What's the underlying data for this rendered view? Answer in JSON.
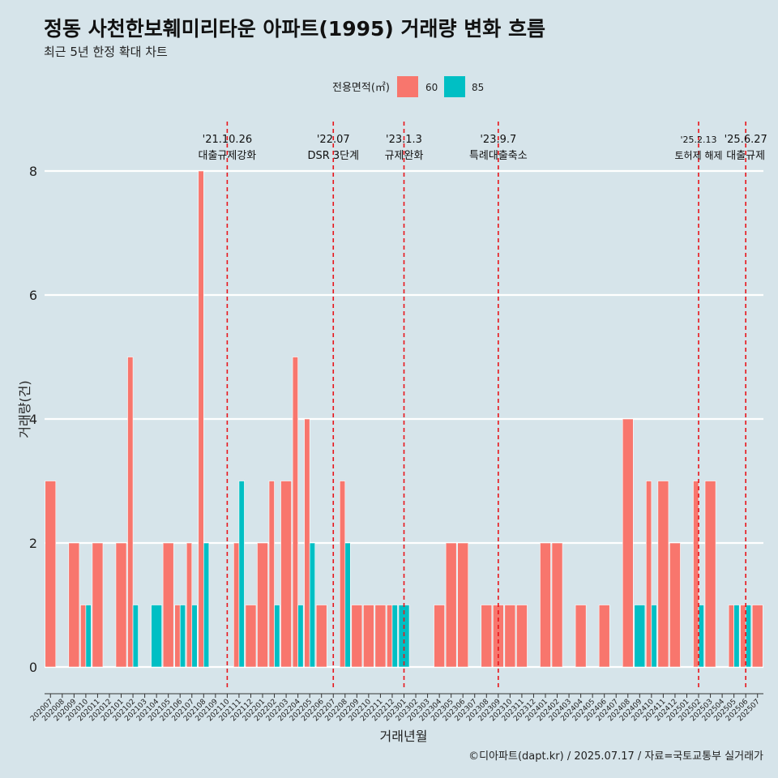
{
  "chart_data": {
    "type": "bar",
    "title": "정동 사천한보훼미리타운 아파트(1995) 거래량 변화 흐름",
    "subtitle": "최근 5년 한정 확대 차트",
    "xlabel": "거래년월",
    "ylabel": "거래량(건)",
    "caption": "©디아파트(dapt.kr) / 2025.07.17 / 자료=국토교통부 실거래가",
    "legend": {
      "title": "전용면적(㎡)",
      "position": "top"
    },
    "ylim": [
      0,
      8.6
    ],
    "yticks": [
      0,
      2,
      4,
      6,
      8
    ],
    "grid": true,
    "categories": [
      "202007",
      "202008",
      "202009",
      "202010",
      "202011",
      "202012",
      "202101",
      "202102",
      "202103",
      "202104",
      "202105",
      "202106",
      "202107",
      "202108",
      "202109",
      "202110",
      "202111",
      "202112",
      "202201",
      "202202",
      "202203",
      "202204",
      "202205",
      "202206",
      "202207",
      "202208",
      "202209",
      "202210",
      "202211",
      "202212",
      "202301",
      "202302",
      "202303",
      "202304",
      "202305",
      "202306",
      "202307",
      "202308",
      "202309",
      "202310",
      "202311",
      "202312",
      "202401",
      "202402",
      "202403",
      "202404",
      "202405",
      "202406",
      "202407",
      "202408",
      "202409",
      "202410",
      "202411",
      "202412",
      "202501",
      "202502",
      "202503",
      "202504",
      "202505",
      "202506",
      "202507"
    ],
    "series": [
      {
        "name": "60",
        "color": "#f8766d",
        "values": [
          3,
          0,
          2,
          1,
          2,
          0,
          2,
          5,
          0,
          0,
          2,
          1,
          2,
          8,
          0,
          0,
          2,
          1,
          2,
          3,
          3,
          5,
          4,
          1,
          0,
          3,
          1,
          1,
          1,
          1,
          0,
          0,
          0,
          1,
          2,
          2,
          0,
          1,
          1,
          1,
          1,
          0,
          2,
          2,
          0,
          1,
          0,
          1,
          0,
          4,
          0,
          3,
          3,
          2,
          0,
          3,
          3,
          0,
          1,
          1,
          1
        ]
      },
      {
        "name": "85",
        "color": "#00bfc4",
        "values": [
          0,
          0,
          0,
          1,
          0,
          0,
          0,
          1,
          0,
          1,
          0,
          1,
          1,
          2,
          0,
          0,
          3,
          0,
          0,
          1,
          0,
          1,
          2,
          0,
          0,
          2,
          0,
          0,
          0,
          1,
          1,
          0,
          0,
          0,
          0,
          0,
          0,
          0,
          0,
          0,
          0,
          0,
          0,
          0,
          0,
          0,
          0,
          0,
          0,
          0,
          1,
          1,
          0,
          0,
          0,
          1,
          0,
          0,
          1,
          1,
          0
        ]
      }
    ],
    "events": [
      {
        "category": "202110",
        "date": "'21.10.26",
        "label": "대출규제강화"
      },
      {
        "category": "202207",
        "date": "'22.07",
        "label": "DSR 3단계"
      },
      {
        "category": "202301",
        "date": "'23.1.3",
        "label": "규제완화"
      },
      {
        "category": "202309",
        "date": "'23.9.7",
        "label": "특례대출축소"
      },
      {
        "category": "202502",
        "date": "'25.2.13",
        "label": "토허제 해제"
      },
      {
        "category": "202506",
        "date": "'25.6.27",
        "label": "대출규제"
      }
    ],
    "event_line_color": "#e8141a"
  }
}
